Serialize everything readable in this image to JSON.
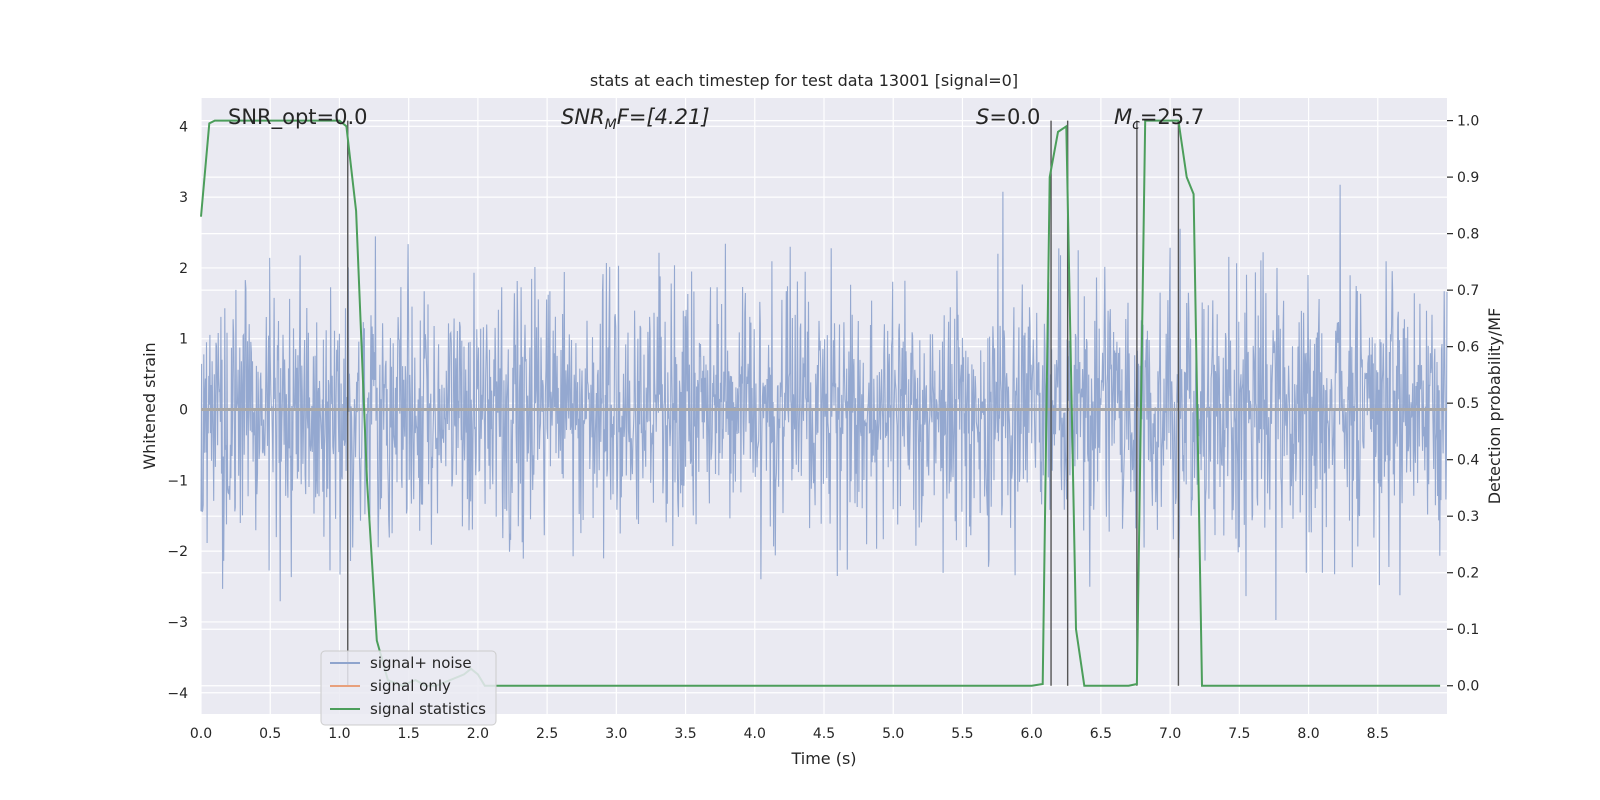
{
  "chart_data": {
    "type": "line",
    "title": "stats at each timestep for test data 13001 [signal=0]",
    "xlabel": "Time (s)",
    "ylabel": "Whitened strain",
    "ylabel_right": "Detection probability/MF",
    "xlim": [
      0,
      9.0
    ],
    "ylim": [
      -4.3,
      4.4
    ],
    "ylim_right": [
      -0.05,
      1.04
    ],
    "xticks": [
      "0.0",
      "0.5",
      "1.0",
      "1.5",
      "2.0",
      "2.5",
      "3.0",
      "3.5",
      "4.0",
      "4.5",
      "5.0",
      "5.5",
      "6.0",
      "6.5",
      "7.0",
      "7.5",
      "8.0",
      "8.5"
    ],
    "yticks_left": [
      "4",
      "3",
      "2",
      "1",
      "0",
      "−1",
      "−2",
      "−3",
      "−4"
    ],
    "yticks_right": [
      "1.0",
      "0.9",
      "0.8",
      "0.7",
      "0.6",
      "0.5",
      "0.4",
      "0.3",
      "0.2",
      "0.1",
      "0.0"
    ],
    "grid": true,
    "legend_position": "lower-left",
    "annotations": {
      "snr_opt": "SNR_opt=0.0",
      "snr_mf_base": "SNR",
      "snr_mf_sub": "M",
      "snr_mf_rest": "F=[4.21]",
      "s_base": "S",
      "s_rest": "=0.0",
      "mc_base": "M",
      "mc_sub": "c",
      "mc_rest": "=25.7"
    },
    "series": [
      {
        "name": "signal+ noise",
        "color": "#8fa4cd",
        "axis": "left",
        "description_only": "random noise with approx std 0.9, peaks to about ±3.5",
        "std": 0.9,
        "dt": 0.004
      },
      {
        "name": "signal only",
        "color": "#e8a07c",
        "axis": "left",
        "values_constant": 0.0
      },
      {
        "name": "signal statistics",
        "color": "#4c9e5b",
        "axis": "right",
        "x": [
          0.0,
          0.06,
          0.1,
          0.2,
          0.5,
          0.8,
          1.0,
          1.05,
          1.12,
          1.2,
          1.27,
          1.35,
          1.45,
          1.55,
          1.62,
          1.7,
          1.8,
          1.9,
          1.95,
          2.0,
          2.05,
          2.1,
          2.2,
          2.5,
          3.0,
          3.5,
          4.0,
          4.5,
          5.0,
          5.5,
          6.0,
          6.08,
          6.13,
          6.19,
          6.25,
          6.32,
          6.38,
          6.45,
          6.6,
          6.7,
          6.76,
          6.82,
          6.9,
          7.0,
          7.06,
          7.12,
          7.17,
          7.23,
          7.3,
          7.5,
          8.0,
          8.5,
          8.95
        ],
        "y": [
          0.83,
          0.995,
          1.0,
          1.0,
          1.0,
          1.0,
          1.0,
          0.99,
          0.84,
          0.36,
          0.08,
          0.01,
          0.0,
          0.01,
          0.0,
          0.0,
          0.01,
          0.02,
          0.03,
          0.02,
          0.0,
          0.0,
          0.0,
          0.0,
          0.0,
          0.0,
          0.0,
          0.0,
          0.0,
          0.0,
          0.0,
          0.003,
          0.9,
          0.98,
          0.99,
          0.1,
          0.0,
          0.0,
          0.0,
          0.0,
          0.003,
          1.0,
          1.0,
          1.0,
          1.0,
          0.9,
          0.87,
          0.0,
          0.0,
          0.0,
          0.0,
          0.0,
          0.0
        ]
      }
    ],
    "vertical_markers": [
      1.06,
      6.14,
      6.26,
      6.76,
      7.06
    ]
  }
}
